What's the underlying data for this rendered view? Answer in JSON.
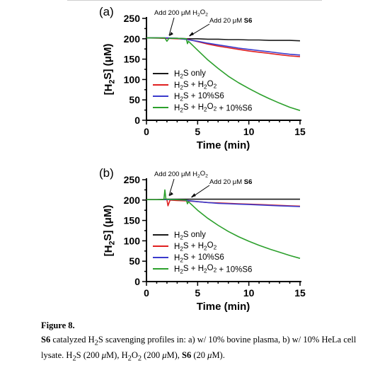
{
  "colors": {
    "h2s_only": "#1a1a1a",
    "h2s_h2o2": "#e02020",
    "h2s_s6": "#3a3acc",
    "h2s_h2o2_s6": "#2ca02c"
  },
  "chart_data": [
    {
      "type": "line",
      "panel_label": "(a)",
      "xlabel": "Time (min)",
      "ylabel": "[H2S] (μM)",
      "xlim": [
        0,
        15
      ],
      "ylim": [
        0,
        250
      ],
      "xticks": [
        0,
        5,
        10,
        15
      ],
      "yticks": [
        0,
        50,
        100,
        150,
        200,
        250
      ],
      "legend_position": "lower-left",
      "annotations": [
        {
          "text": "Add 200 μM H2O2",
          "x": 2.0,
          "y": 203
        },
        {
          "text": "Add 20 μM S6",
          "x": 4.0,
          "y": 203
        }
      ],
      "series": [
        {
          "name": "H2S only",
          "color_key": "h2s_only",
          "x": [
            0,
            1,
            2,
            3,
            4,
            5,
            6,
            7,
            8,
            9,
            10,
            11,
            12,
            13,
            14,
            15
          ],
          "y": [
            202,
            202,
            201,
            201,
            200,
            200,
            199,
            199,
            198,
            198,
            197,
            197,
            196,
            196,
            196,
            195
          ]
        },
        {
          "name": "H2S + H2O2",
          "color_key": "h2s_h2o2",
          "x": [
            0,
            2,
            3,
            4,
            5,
            6,
            7,
            8,
            9,
            10,
            11,
            12,
            13,
            14,
            15
          ],
          "y": [
            202,
            201,
            200,
            199,
            193,
            187,
            182,
            178,
            174,
            170,
            167,
            164,
            161,
            158,
            156
          ]
        },
        {
          "name": "H2S + 10%S6",
          "color_key": "h2s_s6",
          "x": [
            0,
            2,
            3,
            4,
            5,
            6,
            7,
            8,
            9,
            10,
            11,
            12,
            13,
            14,
            15
          ],
          "y": [
            202,
            202,
            201,
            198,
            194,
            189,
            185,
            181,
            177,
            174,
            171,
            168,
            165,
            162,
            160
          ]
        },
        {
          "name": "H2S + H2O2 + 10%S6",
          "color_key": "h2s_h2o2_s6",
          "x": [
            0,
            1.8,
            2.0,
            2.2,
            3,
            3.9,
            4.0,
            4.1,
            5,
            6,
            7,
            8,
            9,
            10,
            11,
            12,
            13,
            14,
            15
          ],
          "y": [
            202,
            202,
            194,
            201,
            201,
            200,
            188,
            194,
            172,
            148,
            127,
            108,
            92,
            78,
            65,
            53,
            42,
            32,
            24
          ]
        }
      ]
    },
    {
      "type": "line",
      "panel_label": "(b)",
      "xlabel": "Time (min)",
      "ylabel": "[H2S] (μM)",
      "xlim": [
        0,
        15
      ],
      "ylim": [
        0,
        250
      ],
      "xticks": [
        0,
        5,
        10,
        15
      ],
      "yticks": [
        0,
        50,
        100,
        150,
        200,
        250
      ],
      "legend_position": "lower-left",
      "annotations": [
        {
          "text": "Add 200 μM H2O2",
          "x": 2.0,
          "y": 206
        },
        {
          "text": "Add 20 μM S6",
          "x": 4.2,
          "y": 203
        }
      ],
      "series": [
        {
          "name": "H2S only",
          "color_key": "h2s_only",
          "x": [
            0,
            1,
            2,
            3,
            4,
            5,
            6,
            7,
            8,
            9,
            10,
            11,
            12,
            13,
            14,
            15
          ],
          "y": [
            201,
            201,
            202,
            202,
            202,
            202,
            202,
            202,
            202,
            202,
            202,
            202,
            202,
            202,
            202,
            202
          ]
        },
        {
          "name": "H2S + H2O2",
          "color_key": "h2s_h2o2",
          "x": [
            0,
            2.0,
            2.1,
            2.3,
            3,
            4,
            5,
            6,
            7,
            8,
            9,
            10,
            11,
            12,
            13,
            14,
            15
          ],
          "y": [
            201,
            201,
            186,
            200,
            199,
            198,
            196,
            194,
            193,
            192,
            191,
            190,
            189,
            188,
            187,
            186,
            185
          ]
        },
        {
          "name": "H2S + 10%S6",
          "color_key": "h2s_s6",
          "x": [
            0,
            2,
            3,
            4,
            5,
            6,
            7,
            8,
            9,
            10,
            11,
            12,
            13,
            14,
            15
          ],
          "y": [
            201,
            201,
            201,
            199,
            196,
            194,
            192,
            191,
            190,
            189,
            188,
            187,
            186,
            185,
            184
          ]
        },
        {
          "name": "H2S + H2O2 + 10%S6",
          "color_key": "h2s_h2o2_s6",
          "x": [
            0,
            1.7,
            1.8,
            1.9,
            3,
            3.9,
            4.0,
            4.1,
            5,
            6,
            7,
            8,
            9,
            10,
            11,
            12,
            13,
            14,
            15
          ],
          "y": [
            201,
            201,
            225,
            202,
            201,
            200,
            191,
            196,
            175,
            155,
            138,
            123,
            110,
            99,
            89,
            80,
            72,
            64,
            57
          ]
        }
      ]
    }
  ],
  "caption": {
    "figure_label": "Figure 8.",
    "line1": "S6 catalyzed H2S scavenging profiles in: a) w/ 10% bovine plasma, b) w/ 10% HeLa cell",
    "line2": "lysate. H2S (200 μM), H2O2 (200 μM), S6 (20 μM)."
  }
}
